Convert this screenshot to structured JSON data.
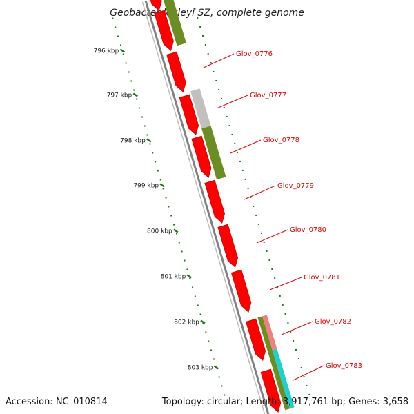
{
  "title": "Geobacter lovleyi SZ, complete genome",
  "footer": {
    "accession": "Accession: NC_010814",
    "summary": "Topology: circular; Length: 3,917,761 bp; Genes: 3,658"
  },
  "ticks": [
    "796 kbp",
    "797 kbp",
    "798 kbp",
    "799 kbp",
    "800 kbp",
    "801 kbp",
    "802 kbp",
    "803 kbp"
  ],
  "genes": [
    "Glov_0776",
    "Glov_0777",
    "Glov_0778",
    "Glov_0779",
    "Glov_0780",
    "Glov_0781",
    "Glov_0782",
    "Glov_0783"
  ],
  "colors": {
    "cds": "#ff0000",
    "backbone": "#888888",
    "tick": "#1a7a1a",
    "label": "#dd0000",
    "olive": "#6b8e23",
    "gray": "#c0c0c0",
    "pink": "#f08080",
    "cyan": "#20d0d0"
  }
}
